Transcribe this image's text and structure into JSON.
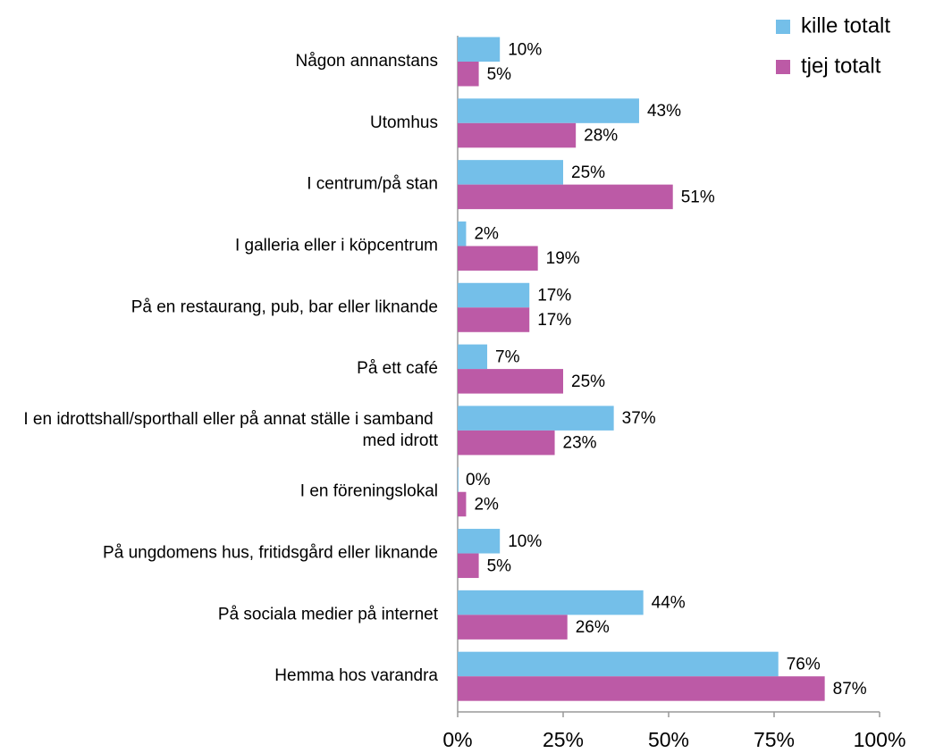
{
  "chart_data": {
    "type": "hbar",
    "categories": [
      "Någon annanstans",
      "Utomhus",
      "I centrum/på stan",
      "I galleria eller i köpcentrum",
      "På en restaurang, pub, bar eller liknande",
      "På ett café",
      "I en idrottshall/sporthall eller på annat ställe i samband med idrott",
      "I en föreningslokal",
      "På ungdomens hus, fritidsgård eller liknande",
      "På sociala medier på internet",
      "Hemma hos varandra"
    ],
    "series": [
      {
        "name": "kille totalt",
        "color": "#74bfe9",
        "values": [
          10,
          43,
          25,
          2,
          17,
          7,
          37,
          0,
          10,
          44,
          76
        ],
        "value_labels": [
          "10%",
          "43%",
          "25%",
          "2%",
          "17%",
          "7%",
          "37%",
          "0%",
          "10%",
          "44%",
          "76%"
        ]
      },
      {
        "name": "tjej totalt",
        "color": "#bc5aa6",
        "values": [
          5,
          28,
          51,
          19,
          17,
          25,
          23,
          2,
          5,
          26,
          87
        ],
        "value_labels": [
          "5%",
          "28%",
          "51%",
          "19%",
          "17%",
          "25%",
          "23%",
          "2%",
          "5%",
          "26%",
          "87%"
        ]
      }
    ],
    "xlim": [
      0,
      100
    ],
    "xticks": [
      {
        "value": 0,
        "label": "0%"
      },
      {
        "value": 25,
        "label": "25%"
      },
      {
        "value": 50,
        "label": "50%"
      },
      {
        "value": 75,
        "label": "75%"
      },
      {
        "value": 100,
        "label": "100%"
      }
    ],
    "legend": "top-right"
  }
}
